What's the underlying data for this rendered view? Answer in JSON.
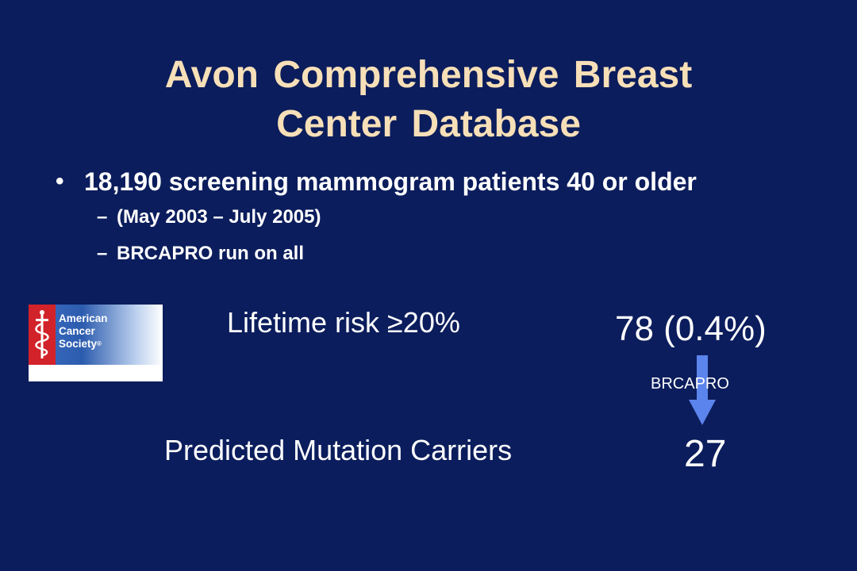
{
  "slide": {
    "title_line1": "Avon Comprehensive Breast",
    "title_line2": "Center Database",
    "bullet": "18,190 screening mammogram patients 40 or older",
    "sub_bullets": [
      "(May 2003 – July 2005)",
      "BRCAPRO run on all"
    ]
  },
  "logo": {
    "text_line1": "American",
    "text_line2": "Cancer",
    "text_line3": "Society",
    "mark": "®"
  },
  "stats": {
    "risk_label": "Lifetime risk ≥20%",
    "risk_value": "78 (0.4%)",
    "arrow_label": "BRCAPRO",
    "carriers_label": "Predicted Mutation Carriers",
    "carriers_value": "27"
  },
  "colors": {
    "background": "#0b1d5c",
    "title": "#f7dfb8",
    "body_text": "#ffffff",
    "arrow": "#5b84ec",
    "logo_red": "#d2232a",
    "logo_blue": "#2c5cae"
  },
  "icons": {
    "bullet": "bullet-dot",
    "logo_emblem": "sword-and-snake-icon",
    "arrow": "down-arrow-icon"
  }
}
